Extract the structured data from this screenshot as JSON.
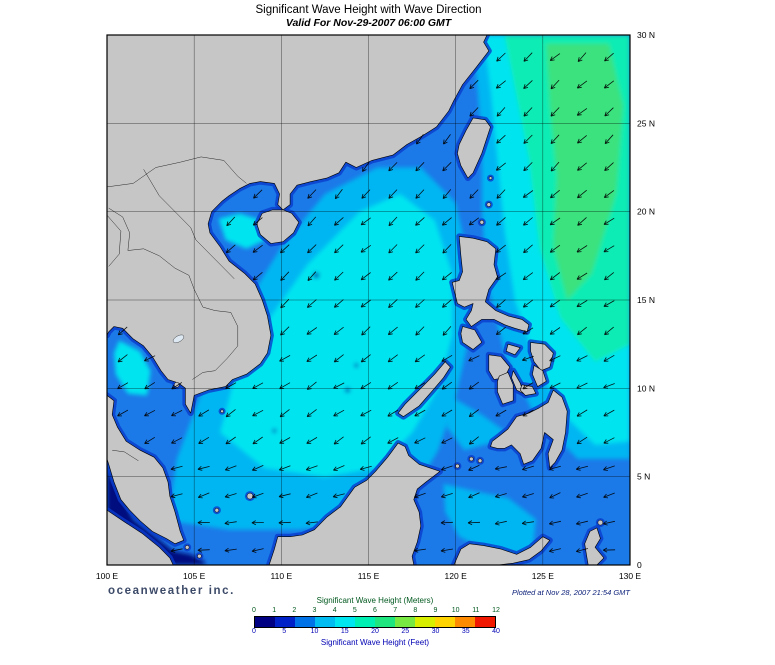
{
  "header": {
    "title": "Significant Wave Height with Wave Direction",
    "subtitle": "Valid For Nov-29-2007 06:00 GMT"
  },
  "map": {
    "lat_labels": [
      "30 N",
      "25 N",
      "20 N",
      "15 N",
      "10 N",
      "5 N",
      "0"
    ],
    "lon_labels": [
      "100 E",
      "105 E",
      "110 E",
      "115 E",
      "120 E",
      "125 E",
      "130 E"
    ],
    "land_color": "#c6c6c6",
    "coast_color": "#000000",
    "grid_color": "#000000",
    "sea_colors": {
      "base": "#1b79e8",
      "mid": "#00b6f2",
      "cyan": "#00e4f0",
      "pale": "#0cecb4",
      "green": "#3ae27e",
      "navy": "#000d7e",
      "shore": "#0a3ccc",
      "deep": "#0630b4"
    },
    "arrows": {
      "color": "#000000",
      "bands": [
        {
          "lat_min": 20,
          "lat_max": 31,
          "bearing": 222
        },
        {
          "lat_min": 12,
          "lat_max": 20,
          "bearing": 228
        },
        {
          "lat_min": 7,
          "lat_max": 12,
          "bearing": 238
        },
        {
          "lat_min": 3,
          "lat_max": 7,
          "bearing": 250
        },
        {
          "lat_min": 0,
          "lat_max": 3,
          "bearing": 262
        }
      ]
    }
  },
  "footer": {
    "brand": "oceanweather inc.",
    "plotted": "Plotted at Nov 28, 2007 21:54 GMT"
  },
  "legend": {
    "meters_title": "Significant Wave Height (Meters)",
    "meters_ticks": [
      "0",
      "1",
      "2",
      "3",
      "4",
      "5",
      "6",
      "7",
      "8",
      "9",
      "10",
      "11",
      "12"
    ],
    "feet_title": "Significant Wave Height (Feet)",
    "feet_ticks": [
      "0",
      "5",
      "10",
      "15",
      "20",
      "25",
      "30",
      "35",
      "40"
    ],
    "palette": [
      "#000082",
      "#0020c8",
      "#0072e8",
      "#00bcf0",
      "#00e6f0",
      "#00f0b4",
      "#20e680",
      "#78e842",
      "#d8f000",
      "#ffd400",
      "#ff8c00",
      "#f01800"
    ],
    "meters_color": "#00581e",
    "feet_color": "#0000b4"
  }
}
